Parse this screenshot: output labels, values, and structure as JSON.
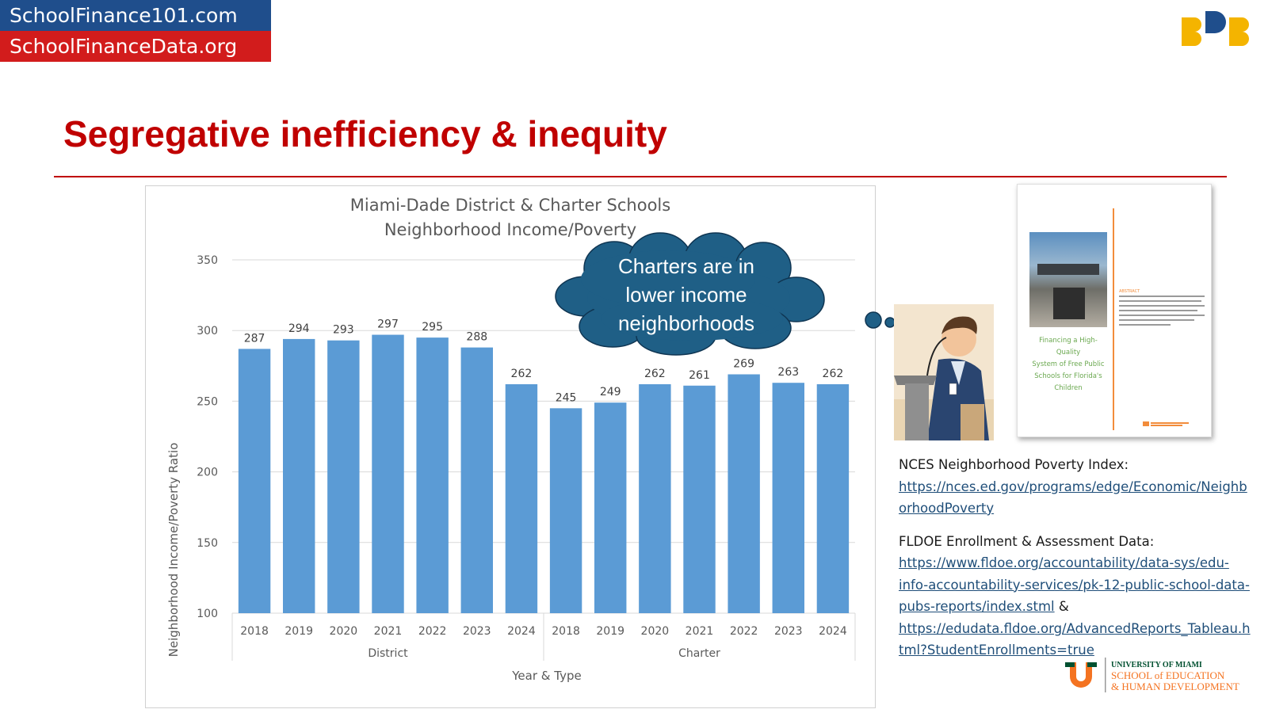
{
  "brand": {
    "line1": "SchoolFinance101.com",
    "line2": "SchoolFinanceData.org",
    "line1_color": "#1f4e8c",
    "line2_color": "#d21c1c"
  },
  "slide": {
    "title": "Segregative inefficiency & inequity",
    "title_color": "#c00000"
  },
  "bubble": {
    "lines": [
      "Charters are in",
      "lower income",
      "neighborhoods"
    ],
    "color": "#1f5f86"
  },
  "chart_data": {
    "type": "bar",
    "title_lines": [
      "Miami-Dade District & Charter Schools",
      "Neighborhood Income/Poverty"
    ],
    "xlabel": "Year & Type",
    "ylabel": "Neighborhood Income/Poverty Ratio",
    "ylim": [
      100,
      350
    ],
    "yticks": [
      100,
      150,
      200,
      250,
      300,
      350
    ],
    "grid": true,
    "bar_color": "#5b9bd5",
    "groups": [
      {
        "name": "District",
        "categories": [
          "2018",
          "2019",
          "2020",
          "2021",
          "2022",
          "2023",
          "2024"
        ],
        "values": [
          287,
          294,
          293,
          297,
          295,
          288,
          262
        ]
      },
      {
        "name": "Charter",
        "categories": [
          "2018",
          "2019",
          "2020",
          "2021",
          "2022",
          "2023",
          "2024"
        ],
        "values": [
          245,
          249,
          262,
          261,
          269,
          263,
          262
        ]
      }
    ]
  },
  "report": {
    "caption_lines": [
      "Financing a High-Quality",
      "System of Free Public",
      "Schools for Florida's",
      "Children"
    ],
    "abstract_heading": "ABSTRACT"
  },
  "sources": {
    "nces_label": "NCES Neighborhood Poverty Index:",
    "nces_url_lines": [
      "https://nces.ed.gov/programs/edge/Economic/Neighb",
      "orhoodPoverty"
    ],
    "fldoe_label": "FLDOE Enrollment & Assessment Data:",
    "fldoe_url1_lines": [
      "https://www.fldoe.org/accountability/data-sys/edu-",
      "info-accountability-services/pk-12-public-school-data-",
      "pubs-reports/index.stml"
    ],
    "amp": " &",
    "fldoe_url2_lines": [
      "https://edudata.fldoe.org/AdvancedReports_Tableau.h",
      "tml?StudentEnrollments=true"
    ]
  },
  "university": {
    "line1": "UNIVERSITY OF MIAMI",
    "line2": "SCHOOL of EDUCATION",
    "line3": "& HUMAN DEVELOPMENT"
  }
}
